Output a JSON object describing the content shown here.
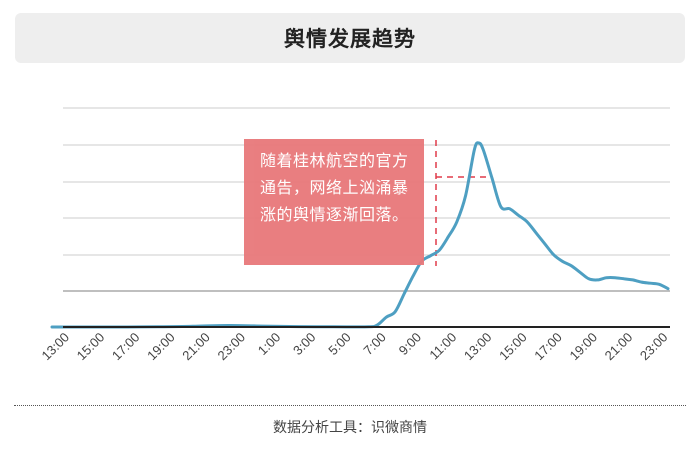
{
  "header": {
    "title": "舆情发展趋势"
  },
  "annotation": {
    "text": "随着桂林航空的官方通告，网络上汹涌暴涨的舆情逐渐回落。"
  },
  "footer": {
    "source": "数据分析工具：识微商情"
  },
  "colors": {
    "line": "#4e9fc2",
    "annotation": "#e8787a",
    "marker": "#e03c4a",
    "grid": "#cccccc",
    "axis": "#222222"
  },
  "chart_data": {
    "type": "line",
    "title": "舆情发展趋势",
    "xlabel": "",
    "ylabel": "",
    "grid": true,
    "legend": "none",
    "ylim": [
      0,
      100
    ],
    "x_tick_labels": [
      "13:00",
      "15:00",
      "17:00",
      "19:00",
      "21:00",
      "23:00",
      "1:00",
      "3:00",
      "5:00",
      "7:00",
      "9:00",
      "11:00",
      "13:00",
      "15:00",
      "17:00",
      "19:00",
      "21:00",
      "23:00"
    ],
    "x": [
      0,
      2,
      4,
      6,
      8,
      10,
      12,
      14,
      16,
      18,
      18.5,
      19,
      19.5,
      20,
      20.5,
      21,
      21.5,
      22,
      22.5,
      23,
      23.5,
      24,
      24.25,
      24.5,
      25,
      25.5,
      26,
      26.5,
      27,
      27.5,
      28,
      28.5,
      29,
      29.5,
      30,
      30.5,
      31,
      31.5,
      32,
      32.5,
      33,
      33.5,
      34,
      34.5,
      35
    ],
    "values": [
      0,
      0,
      0,
      0.1,
      0.3,
      0.7,
      0.4,
      0.2,
      0.1,
      0.1,
      1,
      4.5,
      7,
      15,
      23,
      30,
      32.5,
      35,
      41,
      48,
      60,
      81,
      84,
      81,
      68,
      55,
      54,
      51,
      48,
      43,
      38,
      33,
      30,
      28,
      25,
      22,
      21.5,
      22.5,
      22.5,
      22,
      21.5,
      20.5,
      20,
      19.5,
      17.5
    ],
    "series": [
      {
        "values_ref": "values"
      }
    ],
    "marker": {
      "type": "dashed-vertical",
      "x": 20.6
    }
  }
}
